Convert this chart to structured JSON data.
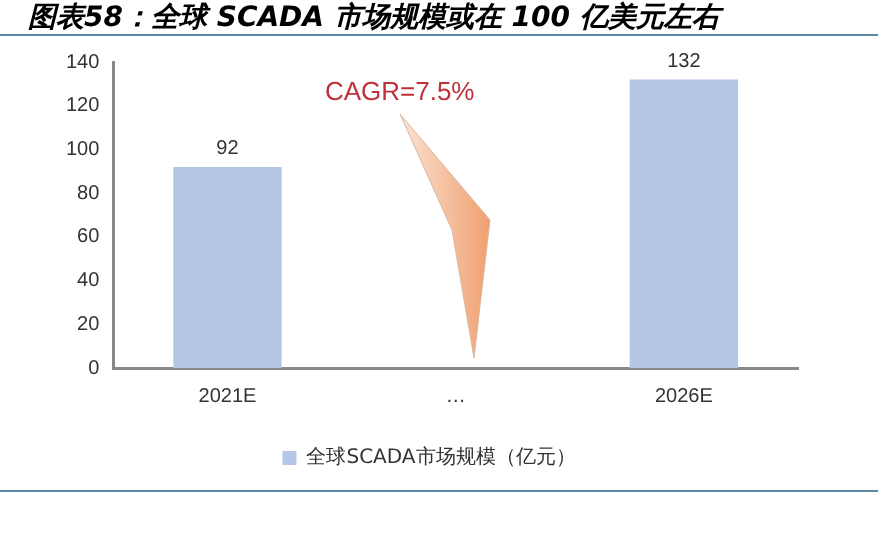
{
  "chart_data": {
    "type": "bar",
    "title": "图表58：全球 SCADA 市场规模或在 100 亿美元左右",
    "categories": [
      "2021E",
      "…",
      "2026E"
    ],
    "series": [
      {
        "name": "全球SCADA市场规模（亿元）",
        "color": "#b4c7e7",
        "values": [
          92,
          null,
          132
        ]
      }
    ],
    "ylim": [
      0,
      140
    ],
    "yticks": [
      0,
      20,
      40,
      60,
      80,
      100,
      120,
      140
    ],
    "grid": false,
    "legend": "bottom",
    "data_labels": true,
    "annotations": [
      "CAGR=7.5%"
    ]
  }
}
